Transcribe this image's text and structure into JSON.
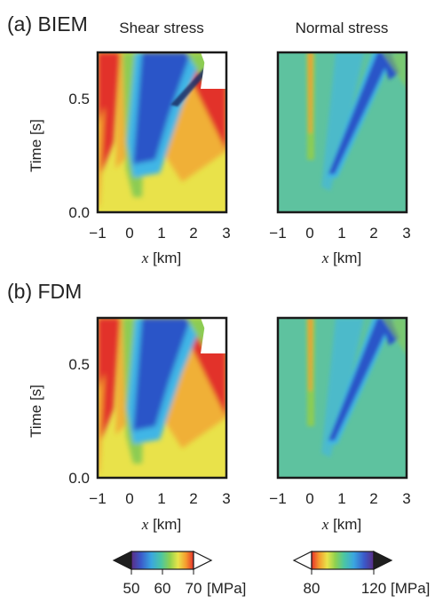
{
  "panels": [
    {
      "label": "(a) BIEM",
      "columns": [
        {
          "title": "Shear stress",
          "kind": "shear"
        },
        {
          "title": "Normal stress",
          "kind": "normal"
        }
      ]
    },
    {
      "label": "(b) FDM",
      "columns": [
        {
          "kind": "shear"
        },
        {
          "kind": "normal"
        }
      ]
    }
  ],
  "axes": {
    "y_label": "Time [s]",
    "x_label_var": "x",
    "x_label_unit": " [km]",
    "x_ticks": [
      "−1",
      "0",
      "1",
      "2",
      "3"
    ],
    "y_ticks": [
      "0.0",
      "0.5"
    ],
    "x_range": [
      -1,
      3
    ],
    "y_range": [
      0.0,
      0.7
    ]
  },
  "colorbars": [
    {
      "name": "shear",
      "ticks": [
        "50",
        "60",
        "70"
      ],
      "unit": "[MPa]",
      "low_extension_color": "#1f1f1f",
      "high_extension_color": "#ffffff",
      "stops": [
        "#5b2d84",
        "#3b58c9",
        "#3aa6e0",
        "#4cc6a2",
        "#8fd14f",
        "#e9e44a",
        "#f59a2e",
        "#e5322b"
      ]
    },
    {
      "name": "normal",
      "ticks": [
        "80",
        "120"
      ],
      "unit": "[MPa]",
      "low_extension_color": "#ffffff",
      "high_extension_color": "#1f1f1f",
      "stops": [
        "#e5322b",
        "#f59a2e",
        "#e9e44a",
        "#8fd14f",
        "#4cc6a2",
        "#3aa6e0",
        "#3b58c9",
        "#5b2d84"
      ]
    }
  ],
  "colors": {
    "yellow": "#e9e24a",
    "green": "#8ccc53",
    "blue": "#2a55c8",
    "cyan": "#3fb6e6",
    "orange": "#f39a2d",
    "red": "#e2302a",
    "teal": "#5ec29f",
    "frame": "#1a1a1a"
  }
}
